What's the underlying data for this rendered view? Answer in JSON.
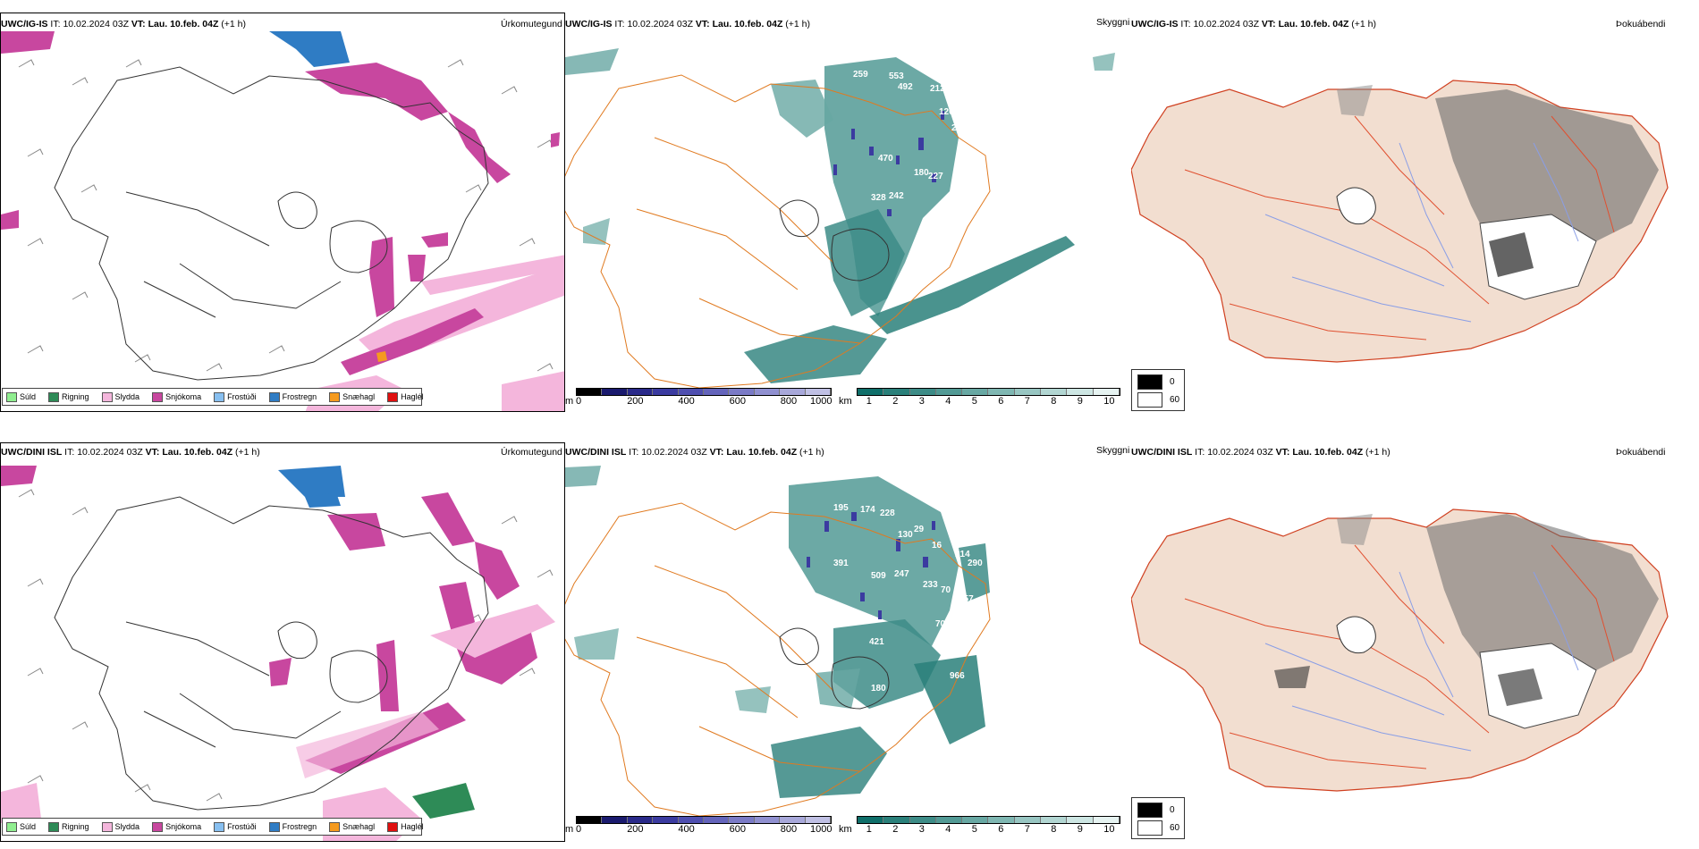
{
  "rows": [
    {
      "model": "UWC/IG-IS",
      "it_label": "IT:",
      "it_value": "10.02.2024 03Z",
      "vt_label": "VT:",
      "vt_value": "Lau. 10.feb. 04Z",
      "lead": "(+1 h)",
      "cloud_numbers": [
        "259",
        "553",
        "492",
        "212",
        "120",
        "320",
        "201",
        "19",
        "470",
        "180",
        "227",
        "328",
        "242"
      ]
    },
    {
      "model": "UWC/DINI ISL",
      "it_label": "IT:",
      "it_value": "10.02.2024 03Z",
      "vt_label": "VT:",
      "vt_value": "Lau. 10.feb. 04Z",
      "lead": "(+1 h)",
      "cloud_numbers": [
        "195",
        "174",
        "228",
        "130",
        "29",
        "16",
        "214",
        "290",
        "391",
        "509",
        "247",
        "233",
        "70",
        "257",
        "421",
        "702",
        "180",
        "966"
      ]
    }
  ],
  "panel_titles": {
    "precip_type": "Úrkomutegund",
    "cloud": "Skyggni",
    "fog": "Þokuábendi"
  },
  "precip_legend": [
    {
      "label": "Súld",
      "color": "#90ee90"
    },
    {
      "label": "Rigning",
      "color": "#2e8b57"
    },
    {
      "label": "Slydda",
      "color": "#f4b6dc"
    },
    {
      "label": "Snjókoma",
      "color": "#c8479f"
    },
    {
      "label": "Frostúði",
      "color": "#87bff0"
    },
    {
      "label": "Frostregn",
      "color": "#2f7cc4"
    },
    {
      "label": "Snæhagl",
      "color": "#f59a1e"
    },
    {
      "label": "Haglél",
      "color": "#e01010"
    }
  ],
  "height_scale": {
    "unit": "m",
    "ticks": [
      "0",
      "200",
      "400",
      "600",
      "800",
      "1000"
    ],
    "colors": [
      "#000000",
      "#1a1a6e",
      "#2a2a8a",
      "#3b3ba0",
      "#4f4fb0",
      "#6464bb",
      "#7a7ac6",
      "#9090d0",
      "#a8a8da",
      "#c0c0e4"
    ]
  },
  "vis_scale": {
    "unit": "km",
    "ticks": [
      "1",
      "2",
      "3",
      "4",
      "5",
      "6",
      "7",
      "8",
      "9",
      "10"
    ],
    "colors": [
      "#0f6f6a",
      "#2a807a",
      "#3d8c87",
      "#529a95",
      "#68a8a3",
      "#7fb7b2",
      "#98c6c2",
      "#b2d6d2",
      "#cde6e3",
      "#e6f3f1"
    ]
  },
  "vis_legend": [
    {
      "label": "0",
      "color": "#000000"
    },
    {
      "label": "60",
      "color": "#ffffff"
    }
  ]
}
